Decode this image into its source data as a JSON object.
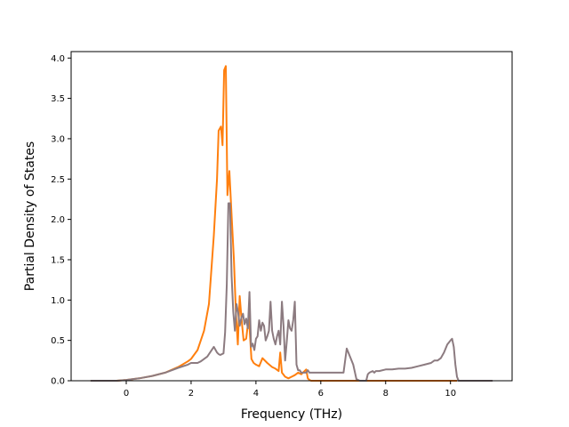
{
  "chart_data": {
    "type": "line",
    "title": "",
    "xlabel": "Frequency (THz)",
    "ylabel": "Partial Density of States",
    "xlim": [
      -1.7,
      11.9
    ],
    "ylim": [
      0,
      4.08
    ],
    "xticks": [
      0,
      2,
      4,
      6,
      8,
      10
    ],
    "yticks": [
      0.0,
      0.5,
      1.0,
      1.5,
      2.0,
      2.5,
      3.0,
      3.5,
      4.0
    ],
    "xtick_labels": [
      "0",
      "2",
      "4",
      "6",
      "8",
      "10"
    ],
    "ytick_labels": [
      "0.0",
      "0.5",
      "1.0",
      "1.5",
      "2.0",
      "2.5",
      "3.0",
      "3.5",
      "4.0"
    ],
    "grid": false,
    "legend": "none",
    "series": [
      {
        "color": "#ff7f0e",
        "x": [
          -1.1,
          -0.3,
          0.0,
          0.4,
          0.8,
          1.2,
          1.6,
          1.9,
          2.0,
          2.2,
          2.4,
          2.55,
          2.7,
          2.8,
          2.85,
          2.92,
          2.97,
          3.02,
          3.07,
          3.12,
          3.18,
          3.25,
          3.32,
          3.38,
          3.44,
          3.5,
          3.56,
          3.62,
          3.7,
          3.78,
          3.86,
          3.93,
          4.0,
          4.1,
          4.2,
          4.35,
          4.5,
          4.6,
          4.7,
          4.75,
          4.8,
          4.9,
          5.0,
          5.1,
          5.2,
          5.3,
          5.4,
          5.5,
          5.55,
          5.6,
          5.65,
          5.7,
          7.0,
          9.0,
          10.2
        ],
        "y": [
          0,
          0,
          0.01,
          0.03,
          0.06,
          0.1,
          0.17,
          0.24,
          0.27,
          0.38,
          0.62,
          0.95,
          1.8,
          2.5,
          3.1,
          3.15,
          2.92,
          3.85,
          3.9,
          2.3,
          2.6,
          2.05,
          1.5,
          0.85,
          0.45,
          1.05,
          0.75,
          0.5,
          0.52,
          0.8,
          0.27,
          0.22,
          0.2,
          0.18,
          0.28,
          0.22,
          0.17,
          0.15,
          0.12,
          0.35,
          0.1,
          0.05,
          0.03,
          0.05,
          0.07,
          0.1,
          0.08,
          0.12,
          0.14,
          0.03,
          0.01,
          0,
          0,
          0,
          0
        ]
      },
      {
        "color": "#8c7b80",
        "x": [
          -1.1,
          -0.3,
          0.0,
          0.4,
          0.8,
          1.2,
          1.6,
          1.9,
          2.0,
          2.2,
          2.3,
          2.5,
          2.6,
          2.7,
          2.8,
          2.85,
          2.9,
          3.0,
          3.05,
          3.1,
          3.15,
          3.2,
          3.25,
          3.3,
          3.35,
          3.4,
          3.45,
          3.5,
          3.55,
          3.6,
          3.65,
          3.7,
          3.75,
          3.8,
          3.85,
          3.9,
          3.95,
          4.0,
          4.05,
          4.1,
          4.15,
          4.2,
          4.25,
          4.3,
          4.35,
          4.4,
          4.45,
          4.5,
          4.55,
          4.6,
          4.65,
          4.7,
          4.75,
          4.8,
          4.85,
          4.9,
          4.95,
          5.0,
          5.05,
          5.1,
          5.15,
          5.2,
          5.25,
          5.3,
          5.35,
          5.4,
          5.45,
          5.5,
          5.55,
          5.6,
          5.65,
          5.7,
          5.75,
          5.8,
          6.0,
          6.1,
          6.2,
          6.3,
          6.6,
          6.7,
          6.8,
          7.0,
          7.1,
          7.2,
          7.25,
          7.3,
          7.35,
          7.4,
          7.45,
          7.5,
          7.6,
          7.65,
          7.7,
          7.8,
          8.0,
          8.2,
          8.4,
          8.6,
          8.8,
          9.0,
          9.2,
          9.4,
          9.5,
          9.6,
          9.7,
          9.8,
          9.9,
          10.0,
          10.05,
          10.1,
          10.15,
          10.2,
          10.25,
          10.3,
          10.4,
          11.3
        ],
        "y": [
          0,
          0,
          0.01,
          0.03,
          0.06,
          0.1,
          0.16,
          0.2,
          0.22,
          0.22,
          0.24,
          0.3,
          0.36,
          0.42,
          0.35,
          0.33,
          0.32,
          0.34,
          0.6,
          1.2,
          2.2,
          2.2,
          1.3,
          0.85,
          0.62,
          0.95,
          0.85,
          0.68,
          0.78,
          0.83,
          0.7,
          0.77,
          0.65,
          1.1,
          0.42,
          0.46,
          0.38,
          0.52,
          0.55,
          0.75,
          0.62,
          0.72,
          0.68,
          0.5,
          0.55,
          0.62,
          0.98,
          0.62,
          0.52,
          0.45,
          0.55,
          0.62,
          0.45,
          0.98,
          0.68,
          0.25,
          0.48,
          0.75,
          0.65,
          0.62,
          0.75,
          0.98,
          0.2,
          0.13,
          0.13,
          0.1,
          0.1,
          0.1,
          0.1,
          0.13,
          0.1,
          0.1,
          0.1,
          0.1,
          0.1,
          0.1,
          0.1,
          0.1,
          0.1,
          0.1,
          0.4,
          0.2,
          0.02,
          0,
          0,
          0,
          0,
          0,
          0.08,
          0.1,
          0.12,
          0.1,
          0.12,
          0.12,
          0.14,
          0.14,
          0.15,
          0.15,
          0.16,
          0.18,
          0.2,
          0.22,
          0.25,
          0.25,
          0.28,
          0.35,
          0.45,
          0.5,
          0.52,
          0.42,
          0.2,
          0.05,
          0,
          0,
          0,
          0
        ]
      }
    ]
  }
}
